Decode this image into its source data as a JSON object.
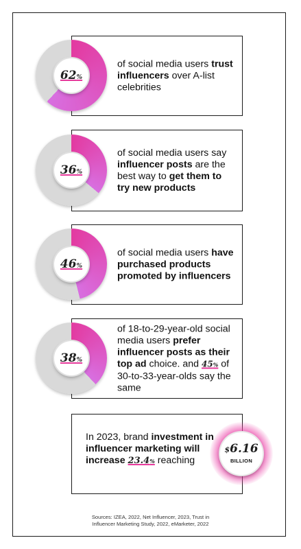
{
  "colors": {
    "accent": "#e6399b",
    "track": "#d9d9d9"
  },
  "stats": [
    {
      "value": "62",
      "symbol": "%",
      "fraction": 0.62,
      "text_before": "of social media users ",
      "bold1": "trust influencers",
      "text_mid": " over A-list celebrities",
      "bold2": "",
      "text_mid2": "",
      "bold3": "",
      "text_after": ""
    },
    {
      "value": "36",
      "symbol": "%",
      "fraction": 0.36,
      "text_before": "of social media users say ",
      "bold1": "influencer posts",
      "text_mid": " are the best way to ",
      "bold2": "get them to try new products",
      "text_mid2": "",
      "bold3": "",
      "text_after": ""
    },
    {
      "value": "46",
      "symbol": "%",
      "fraction": 0.46,
      "text_before": "of social media users ",
      "bold1": "have purchased products promoted by influencers",
      "text_mid": "",
      "bold2": "",
      "text_mid2": "",
      "bold3": "",
      "text_after": ""
    },
    {
      "value": "38",
      "symbol": "%",
      "fraction": 0.38,
      "text_before": "of 18-to-29-year-old social media users ",
      "bold1": "prefer influencer posts as their top ad",
      "text_mid": " choice. and ",
      "bold2": "",
      "text_mid2": "",
      "bold3": "",
      "text_after": " of 30-to-33-year-olds say the same",
      "inline_value": "45",
      "inline_symbol": "%"
    }
  ],
  "investment": {
    "text_before": "In 2023, brand ",
    "bold": "investment in influencer marketing will increase",
    "increase_value": "23.4",
    "increase_symbol": "%",
    "text_after": " reaching",
    "currency": "$",
    "amount": "6.16",
    "unit": "BILLION"
  },
  "sources": {
    "line1": "Sources: IZEA, 2022, Net Influencer, 2023, Trust in",
    "line2": "Influencer Marketing Study, 2022, eMarketer, 2022"
  }
}
